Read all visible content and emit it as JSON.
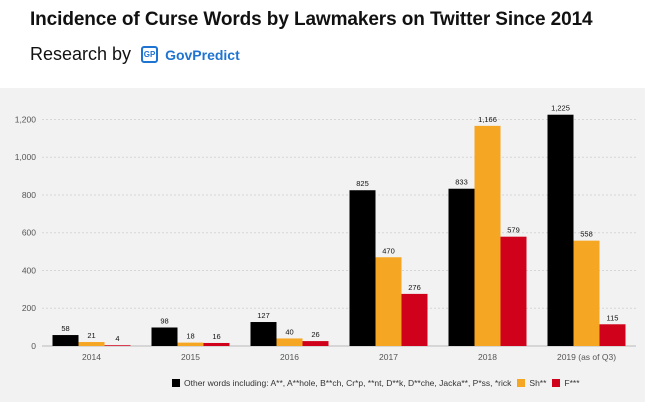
{
  "header": {
    "title": "Incidence of Curse Words by Lawmakers on Twitter Since 2014",
    "byline": "Research by",
    "logo_mark": "GP",
    "brand": "GovPredict",
    "brand_color": "#1f73d1"
  },
  "chart_data": {
    "type": "bar",
    "title": "Incidence of Curse Words by Lawmakers on Twitter Since 2014",
    "categories": [
      "2014",
      "2015",
      "2016",
      "2017",
      "2018",
      "2019 (as of Q3)"
    ],
    "series": [
      {
        "name": "Other words including: A**, A**hole, B**ch, Cr*p, **nt, D**k, D**che, Jacka**, P*ss, *rick",
        "color": "#000000",
        "values": [
          58,
          98,
          127,
          825,
          833,
          1225
        ],
        "labels": [
          "58",
          "98",
          "127",
          "825",
          "833",
          "1,225"
        ]
      },
      {
        "name": "Sh**",
        "color": "#f5a623",
        "values": [
          21,
          18,
          40,
          470,
          1166,
          558
        ],
        "labels": [
          "21",
          "18",
          "40",
          "470",
          "1,166",
          "558"
        ]
      },
      {
        "name": "F***",
        "color": "#d0021b",
        "values": [
          4,
          16,
          26,
          276,
          579,
          115
        ],
        "labels": [
          "4",
          "16",
          "26",
          "276",
          "579",
          "115"
        ]
      }
    ],
    "ylim": [
      0,
      1250
    ],
    "yticks": [
      0,
      200,
      400,
      600,
      800,
      1000,
      1200
    ],
    "ytick_labels": [
      "0",
      "200",
      "400",
      "600",
      "800",
      "1,000",
      "1,200"
    ],
    "grid": true,
    "legend_position": "bottom"
  }
}
